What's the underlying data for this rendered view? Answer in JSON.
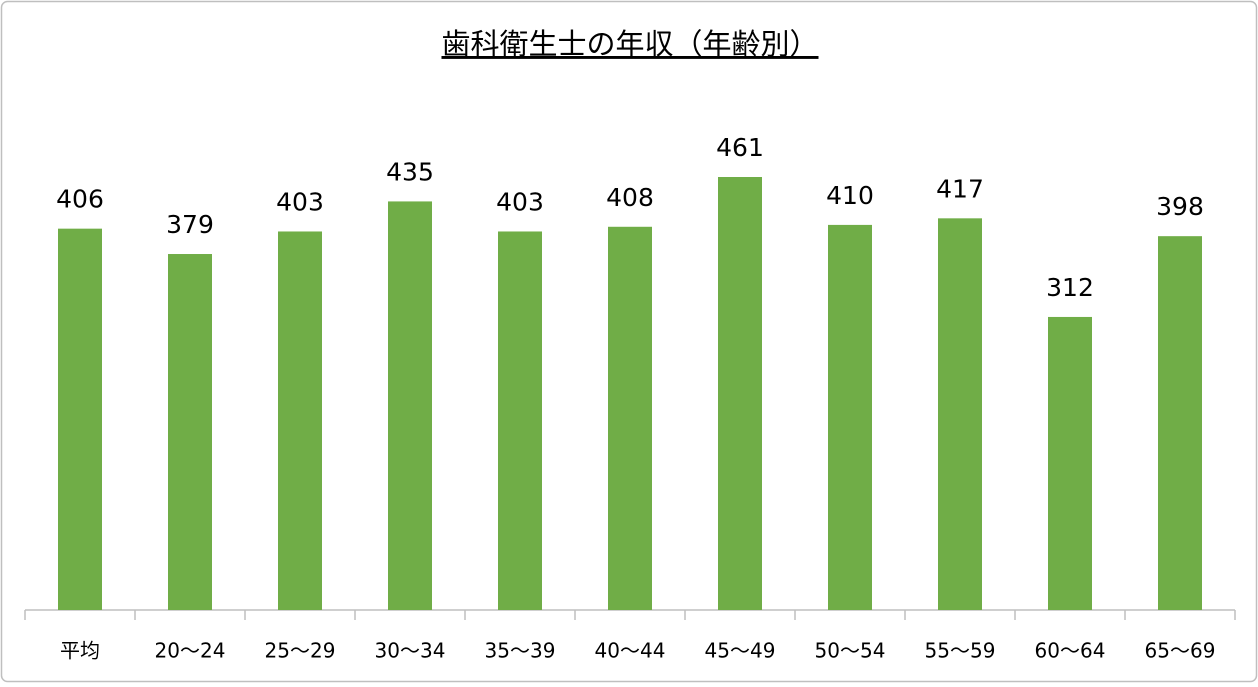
{
  "chart_data": {
    "type": "bar",
    "title": "歯科衛生士の年収（年齢別）",
    "categories": [
      "平均",
      "20〜24",
      "25〜29",
      "30〜34",
      "35〜39",
      "40〜44",
      "45〜49",
      "50〜54",
      "55〜59",
      "60〜64",
      "65〜69"
    ],
    "values": [
      406,
      379,
      403,
      435,
      403,
      408,
      461,
      410,
      417,
      312,
      398
    ],
    "color": "#70ad47"
  }
}
